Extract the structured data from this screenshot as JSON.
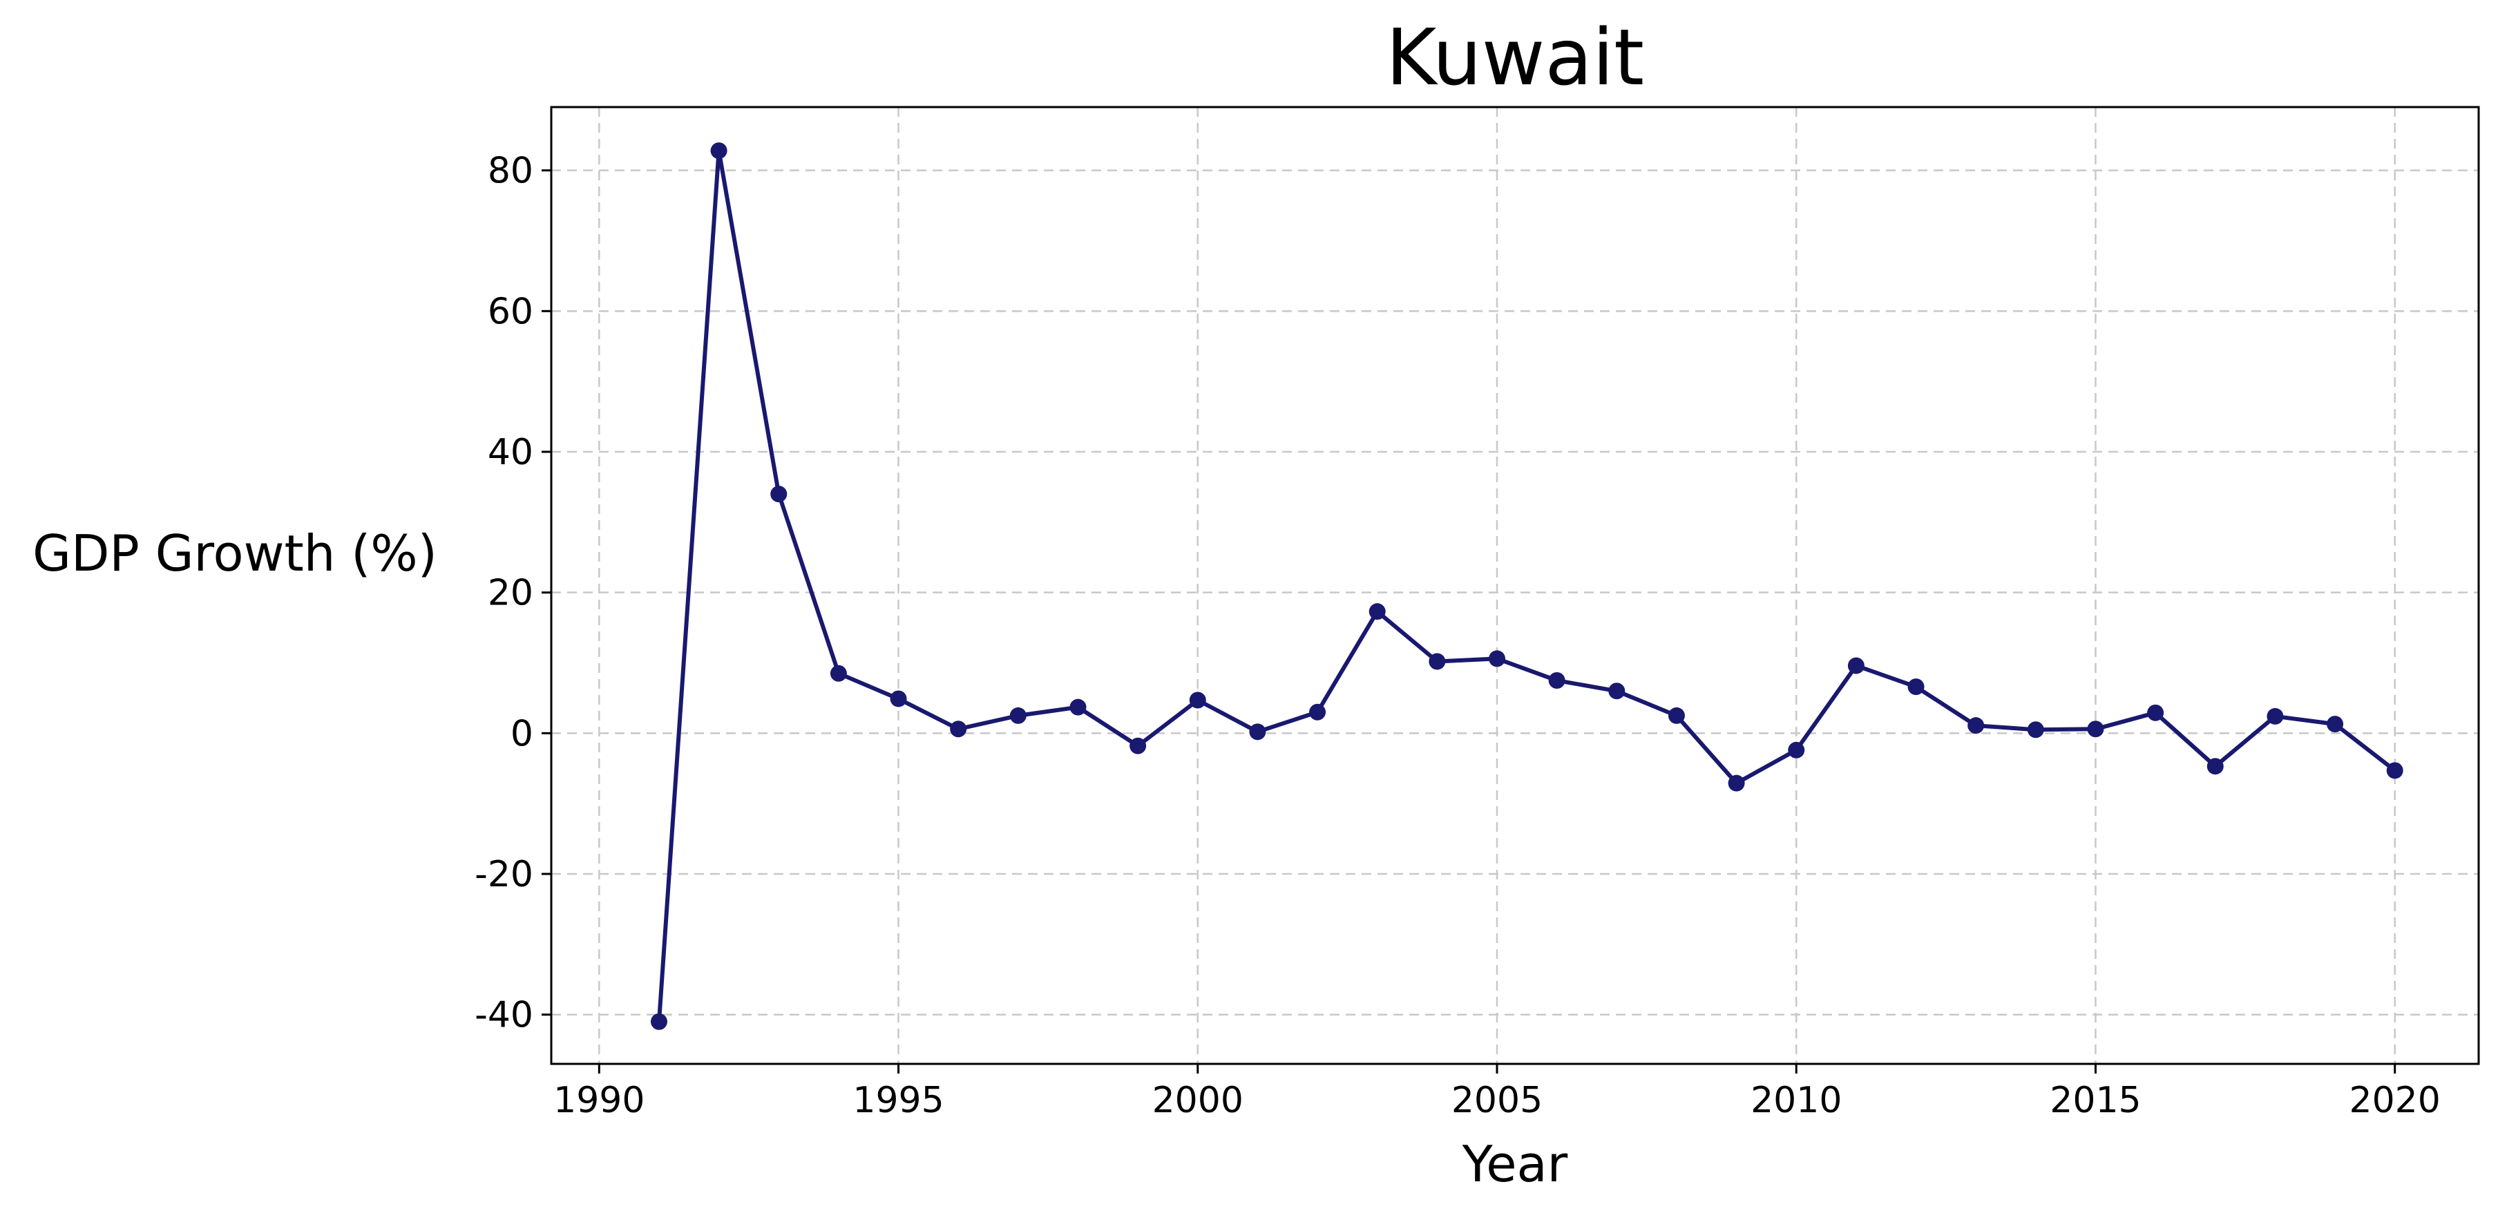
{
  "chart_data": {
    "type": "line",
    "title": "Kuwait",
    "xlabel": "Year",
    "ylabel": "GDP Growth (%)",
    "xlim": [
      1989.2,
      2021.4
    ],
    "ylim": [
      -47,
      89
    ],
    "x_ticks": [
      1990,
      1995,
      2000,
      2005,
      2010,
      2015,
      2020
    ],
    "y_ticks": [
      -40,
      -20,
      0,
      20,
      40,
      60,
      80
    ],
    "grid": true,
    "line_color": "#191970",
    "series": [
      {
        "x": [
          1991,
          1992,
          1993,
          1994,
          1995,
          1996,
          1997,
          1998,
          1999,
          2000,
          2001,
          2002,
          2003,
          2004,
          2005,
          2006,
          2007,
          2008,
          2009,
          2010,
          2011,
          2012,
          2013,
          2014,
          2015,
          2016,
          2017,
          2018,
          2019,
          2020
        ],
        "values": [
          -41.0,
          82.8,
          34.0,
          8.5,
          4.9,
          0.6,
          2.5,
          3.7,
          -1.8,
          4.7,
          0.2,
          3.0,
          17.3,
          10.2,
          10.6,
          7.5,
          6.0,
          2.5,
          -7.1,
          -2.4,
          9.6,
          6.6,
          1.1,
          0.5,
          0.6,
          2.9,
          -4.7,
          2.4,
          1.3,
          -5.3
        ]
      }
    ]
  }
}
